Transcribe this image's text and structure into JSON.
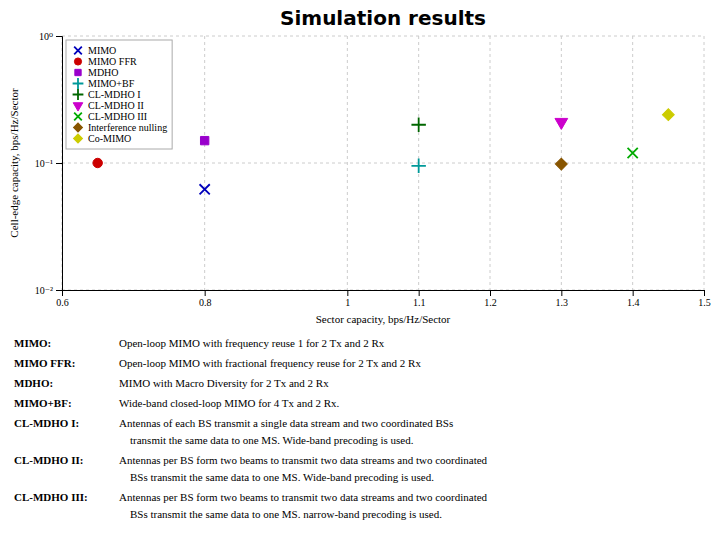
{
  "chart_data": {
    "type": "scatter",
    "title": "Simulation results",
    "xlabel": "Sector capacity, bps/Hz/Sector",
    "ylabel": "Cell-edge capacity, bps/Hz/Sector",
    "log": "y",
    "grid": true,
    "legend": "upper left",
    "xlim": [
      0.6,
      1.5
    ],
    "ylim": [
      0.01,
      1.0
    ],
    "xticks": [
      0.6,
      0.8,
      1.0,
      1.1,
      1.2,
      1.3,
      1.4,
      1.5
    ],
    "yticks": [
      {
        "value": 0.01,
        "label": "10⁻²"
      },
      {
        "value": 0.1,
        "label": "10⁻¹"
      },
      {
        "value": 1.0,
        "label": "10⁰"
      }
    ],
    "series": [
      {
        "name": "MIMO",
        "color": "#0000bb",
        "marker": "x",
        "x": [
          0.8
        ],
        "values": [
          0.062
        ]
      },
      {
        "name": "MIMO FFR",
        "color": "#cc0000",
        "marker": "circle",
        "x": [
          0.65
        ],
        "values": [
          0.1
        ]
      },
      {
        "name": "MDHO",
        "color": "#9900cc",
        "marker": "square",
        "x": [
          0.8
        ],
        "values": [
          0.15
        ]
      },
      {
        "name": "MIMO+BF",
        "color": "#009999",
        "marker": "plus",
        "x": [
          1.1
        ],
        "values": [
          0.095
        ]
      },
      {
        "name": "CL-MDHO I",
        "color": "#006600",
        "marker": "plus",
        "x": [
          1.1
        ],
        "values": [
          0.2
        ]
      },
      {
        "name": "CL-MDHO II",
        "color": "#cc00cc",
        "marker": "triangle-down",
        "x": [
          1.3
        ],
        "values": [
          0.21
        ]
      },
      {
        "name": "CL-MDHO III",
        "color": "#00aa00",
        "marker": "x",
        "x": [
          1.4
        ],
        "values": [
          0.12
        ]
      },
      {
        "name": "Interference nulling",
        "color": "#885500",
        "marker": "diamond",
        "x": [
          1.3
        ],
        "values": [
          0.098
        ]
      },
      {
        "name": "Co-MIMO",
        "color": "#cccc00",
        "marker": "diamond",
        "x": [
          1.45
        ],
        "values": [
          0.24
        ]
      }
    ],
    "annotations": [
      {
        "label": "MIMO:",
        "text": [
          "Open-loop MIMO with frequency reuse 1 for 2 Tx and 2 Rx"
        ]
      },
      {
        "label": "MIMO FFR:",
        "text": [
          "Open-loop MIMO with fractional frequency reuse for 2 Tx and 2 Rx"
        ]
      },
      {
        "label": "MDHO:",
        "text": [
          "MIMO with Macro Diversity for 2 Tx and 2 Rx"
        ]
      },
      {
        "label": "MIMO+BF:",
        "text": [
          "Wide-band closed-loop MIMO for 4 Tx and 2 Rx."
        ]
      },
      {
        "label": "CL-MDHO I:",
        "text": [
          "Antennas of each BS transmit a single data stream and two coordinated BSs",
          "transmit the same data to one MS.  Wide-band precoding is used."
        ]
      },
      {
        "label": "CL-MDHO II:",
        "text": [
          "Antennas per BS form two beams to transmit two data streams and two coordinated",
          "BSs transmit the same data to one MS.  Wide-band precoding is used."
        ]
      },
      {
        "label": "CL-MDHO III:",
        "text": [
          "Antennas per BS form two beams to transmit two data streams and two coordinated",
          "BSs transmit the same data to one MS.  narrow-band precoding is used."
        ]
      }
    ]
  }
}
